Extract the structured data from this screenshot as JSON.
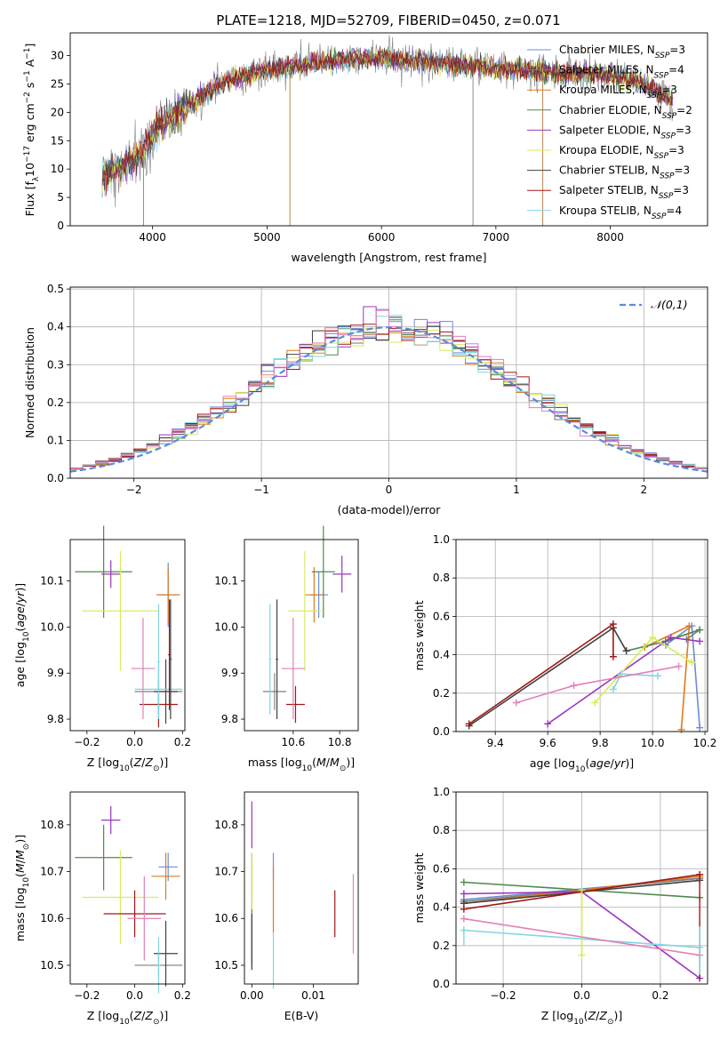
{
  "figure": {
    "title": "PLATE=1218, MJD=52709, FIBERID=0450, z=0.071"
  },
  "series_styles": [
    {
      "name": "Chabrier MILES",
      "nssp": "3",
      "color": "#6b8cd8"
    },
    {
      "name": "Salpeter MILES",
      "nssp": "4",
      "color": "#7f7f7f"
    },
    {
      "name": "Kroupa MILES",
      "nssp": "3",
      "color": "#e07b1a"
    },
    {
      "name": "Chabrier ELODIE",
      "nssp": "2",
      "color": "#4f8a4f"
    },
    {
      "name": "Salpeter ELODIE",
      "nssp": "3",
      "color": "#9b35c0"
    },
    {
      "name": "Kroupa ELODIE",
      "nssp": "3",
      "color": "#d6ec5a"
    },
    {
      "name": "Chabrier STELIB",
      "nssp": "3",
      "color": "#404040"
    },
    {
      "name": "Salpeter STELIB",
      "nssp": "3",
      "color": "#a01818"
    },
    {
      "name": "Kroupa STELIB",
      "nssp": "4",
      "color": "#7fd6e0"
    }
  ],
  "chart_data": [
    {
      "id": "spectrum",
      "type": "line",
      "title": "PLATE=1218, MJD=52709, FIBERID=0450, z=0.071",
      "xlabel": "wavelength [Angstrom, rest frame]",
      "ylabel": "Flux [f_λ10^-17 erg cm^-2 s^-1 A^-1]",
      "xlim": [
        3280,
        8850
      ],
      "ylim": [
        0,
        34
      ],
      "xticks": [
        4000,
        5000,
        6000,
        7000,
        8000
      ],
      "yticks": [
        0,
        5,
        10,
        15,
        20,
        25,
        30
      ],
      "legend": "upper-right",
      "grid": false,
      "continuum": {
        "x": [
          3560,
          3700,
          3850,
          3950,
          4050,
          4200,
          4300,
          4500,
          4700,
          5000,
          5200,
          5500,
          5800,
          6000,
          6300,
          6600,
          6900,
          7200,
          7500,
          8000,
          8300,
          8550
        ],
        "y": [
          9,
          10,
          12,
          14,
          17.5,
          19.5,
          21,
          24,
          26,
          27.5,
          28,
          29,
          29.5,
          29.5,
          29,
          28.5,
          28,
          27.5,
          27,
          26.5,
          25,
          22
        ]
      },
      "spikes": [
        {
          "x": 3920,
          "bottom": 0
        },
        {
          "x": 5200,
          "bottom": 0
        },
        {
          "x": 6800,
          "bottom": 0
        },
        {
          "x": 7410,
          "bottom": 0
        }
      ]
    },
    {
      "id": "residuals",
      "type": "area",
      "xlabel": "(data-model)/error",
      "ylabel": "Normed distribution",
      "xlim": [
        -2.5,
        2.5
      ],
      "ylim": [
        0,
        0.505
      ],
      "xticks": [
        -2,
        -1,
        0,
        1,
        2
      ],
      "yticks": [
        0.0,
        0.1,
        0.2,
        0.3,
        0.4,
        0.5
      ],
      "grid": true,
      "legend": "upper-right",
      "reference_label": "𝒩(0,1)",
      "bin_width": 0.1,
      "bin_start": -2.5
    },
    {
      "id": "age-vs-Z",
      "type": "scatter",
      "xlabel": "Z [log10(Z/Z⊙)]",
      "ylabel": "age  [log10(age/yr)]",
      "xlim": [
        -0.27,
        0.21
      ],
      "ylim": [
        9.775,
        10.19
      ],
      "xticks": [
        -0.2,
        0.0,
        0.2
      ],
      "yticks": [
        9.8,
        9.9,
        10.0,
        10.1
      ],
      "grid": false,
      "points": [
        {
          "series": 0,
          "x": 0.14,
          "y": 10.07,
          "xerr": 0.04,
          "yerr": 0.07
        },
        {
          "series": 1,
          "x": 0.1,
          "y": 9.86,
          "xerr": 0.1,
          "yerr": 0.05
        },
        {
          "series": 2,
          "x": 0.14,
          "y": 10.07,
          "xerr": 0.05,
          "yerr": 0.06
        },
        {
          "series": 3,
          "x": -0.13,
          "y": 10.12,
          "xerr": 0.12,
          "yerr": 0.1
        },
        {
          "series": 4,
          "x": -0.1,
          "y": 10.115,
          "xerr": 0.04,
          "yerr": 0.03
        },
        {
          "series": 5,
          "x": -0.06,
          "y": 10.035,
          "xerr": 0.16,
          "yerr": 0.13
        },
        {
          "series": 6,
          "x": 0.13,
          "y": 9.86,
          "xerr": 0.05,
          "yerr": 0.07
        },
        {
          "series": 7,
          "x": 0.1,
          "y": 9.832,
          "xerr": 0.08,
          "yerr": 0.05
        },
        {
          "series": 8,
          "x": 0.1,
          "y": 9.865,
          "xerr": 0.1,
          "yerr": 0.06
        },
        {
          "series": 6,
          "x": 0.15,
          "y": 9.93,
          "xerr": 0.005,
          "yerr": 0.13
        },
        {
          "series": 7,
          "x": 0.145,
          "y": 9.94,
          "xerr": 0.005,
          "yerr": 0.12
        },
        {
          "series": 8,
          "x": 0.1,
          "y": 9.925,
          "xerr": 0.005,
          "yerr": 0.125
        },
        {
          "series": 9,
          "x": 0.035,
          "y": 9.91,
          "xerr": 0.05,
          "yerr": 0.11
        }
      ]
    },
    {
      "id": "age-vs-mass",
      "type": "scatter",
      "xlabel": "mass [log10(M/M⊙)]",
      "ylabel": "",
      "xlim": [
        10.39,
        10.88
      ],
      "ylim": [
        9.775,
        10.19
      ],
      "xticks": [
        10.6,
        10.8
      ],
      "yticks": [
        9.8,
        9.9,
        10.0,
        10.1
      ],
      "grid": false,
      "points": [
        {
          "series": 0,
          "x": 10.71,
          "y": 10.07,
          "xerr": 0.04,
          "yerr": 0.05
        },
        {
          "series": 1,
          "x": 10.52,
          "y": 9.86,
          "xerr": 0.05,
          "yerr": 0.04
        },
        {
          "series": 2,
          "x": 10.69,
          "y": 10.07,
          "xerr": 0.04,
          "yerr": 0.06
        },
        {
          "series": 3,
          "x": 10.73,
          "y": 10.12,
          "xerr": 0.05,
          "yerr": 0.1
        },
        {
          "series": 4,
          "x": 10.81,
          "y": 10.115,
          "xerr": 0.04,
          "yerr": 0.04
        },
        {
          "series": 5,
          "x": 10.65,
          "y": 10.035,
          "xerr": 0.07,
          "yerr": 0.13
        },
        {
          "series": 6,
          "x": 10.53,
          "y": 9.93,
          "xerr": 0.005,
          "yerr": 0.13
        },
        {
          "series": 7,
          "x": 10.61,
          "y": 9.832,
          "xerr": 0.04,
          "yerr": 0.04
        },
        {
          "series": 8,
          "x": 10.5,
          "y": 9.93,
          "xerr": 0.005,
          "yerr": 0.12
        },
        {
          "series": 9,
          "x": 10.6,
          "y": 9.91,
          "xerr": 0.05,
          "yerr": 0.11
        }
      ]
    },
    {
      "id": "massweight-vs-age",
      "type": "line",
      "xlabel": "age  [log10(age/yr)]",
      "ylabel": "mass weight",
      "xlim": [
        9.25,
        10.21
      ],
      "ylim": [
        0,
        1
      ],
      "xticks": [
        9.4,
        9.6,
        9.8,
        10.0,
        10.2
      ],
      "yticks": [
        0.0,
        0.2,
        0.4,
        0.6,
        0.8,
        1.0
      ],
      "grid": true,
      "series": [
        {
          "series": 0,
          "x": [
            10.18,
            10.15,
            10.05
          ],
          "y": [
            0.02,
            0.55,
            0.45
          ]
        },
        {
          "series": 1,
          "x": [
            10.13,
            10.18,
            10.05
          ],
          "y": [
            0.48,
            0.53,
            0.47
          ]
        },
        {
          "series": 2,
          "x": [
            10.11,
            10.14,
            9.97
          ],
          "y": [
            0.01,
            0.55,
            0.44
          ]
        },
        {
          "series": 3,
          "x": [
            10.18,
            10.05,
            9.9
          ],
          "y": [
            0.53,
            0.47,
            0.42
          ]
        },
        {
          "series": 4,
          "x": [
            9.6,
            10.07,
            10.18
          ],
          "y": [
            0.04,
            0.49,
            0.47
          ]
        },
        {
          "series": 5,
          "x": [
            9.78,
            10.0,
            10.15
          ],
          "y": [
            0.15,
            0.49,
            0.36
          ]
        },
        {
          "series": 6,
          "x": [
            9.3,
            9.85,
            9.9
          ],
          "y": [
            0.03,
            0.54,
            0.42
          ]
        },
        {
          "series": 7,
          "x": [
            9.3,
            9.85,
            9.85
          ],
          "y": [
            0.04,
            0.56,
            0.39
          ]
        },
        {
          "series": 8,
          "x": [
            9.85,
            9.88,
            10.02
          ],
          "y": [
            0.22,
            0.3,
            0.29
          ]
        },
        {
          "series": 9,
          "x": [
            9.48,
            9.7,
            10.1
          ],
          "y": [
            0.15,
            0.24,
            0.34
          ]
        }
      ]
    },
    {
      "id": "mass-vs-Z",
      "type": "scatter",
      "xlabel": "Z [log10(Z/Z⊙)]",
      "ylabel": "mass [log10(M/M⊙)]",
      "xlim": [
        -0.27,
        0.21
      ],
      "ylim": [
        10.46,
        10.87
      ],
      "xticks": [
        -0.2,
        0.0,
        0.2
      ],
      "yticks": [
        10.5,
        10.6,
        10.7,
        10.8
      ],
      "grid": false,
      "points": [
        {
          "series": 0,
          "x": 0.14,
          "y": 10.71,
          "xerr": 0.04,
          "yerr": 0.03
        },
        {
          "series": 1,
          "x": 0.1,
          "y": 10.5,
          "xerr": 0.1,
          "yerr": 0.03
        },
        {
          "series": 2,
          "x": 0.13,
          "y": 10.69,
          "xerr": 0.06,
          "yerr": 0.05
        },
        {
          "series": 3,
          "x": -0.13,
          "y": 10.73,
          "xerr": 0.12,
          "yerr": 0.07
        },
        {
          "series": 4,
          "x": -0.1,
          "y": 10.81,
          "xerr": 0.04,
          "yerr": 0.03
        },
        {
          "series": 5,
          "x": -0.06,
          "y": 10.645,
          "xerr": 0.16,
          "yerr": 0.1
        },
        {
          "series": 6,
          "x": 0.13,
          "y": 10.525,
          "xerr": 0.05,
          "yerr": 0.07
        },
        {
          "series": 7,
          "x": 0.0,
          "y": 10.61,
          "xerr": 0.13,
          "yerr": 0.05
        },
        {
          "series": 8,
          "x": 0.1,
          "y": 10.5,
          "xerr": 0.005,
          "yerr": 0.06
        },
        {
          "series": 9,
          "x": 0.04,
          "y": 10.6,
          "xerr": 0.07,
          "yerr": 0.09
        }
      ]
    },
    {
      "id": "mass-vs-EBV",
      "type": "scatter",
      "xlabel": "E(B-V)",
      "ylabel": "",
      "xlim": [
        -0.0012,
        0.0173
      ],
      "ylim": [
        10.46,
        10.87
      ],
      "xticks": [
        0.0,
        0.01
      ],
      "yticks": [
        10.5,
        10.6,
        10.7,
        10.8
      ],
      "grid": false,
      "points": [
        {
          "series": 0,
          "x": 0.0035,
          "y": 10.71,
          "xerr": 0,
          "yerr": 0.03
        },
        {
          "series": 1,
          "x": 0.0,
          "y": 10.55,
          "xerr": 0,
          "yerr": 0.05
        },
        {
          "series": 2,
          "x": 0.0035,
          "y": 10.64,
          "xerr": 0,
          "yerr": 0.07
        },
        {
          "series": 3,
          "x": 0.0,
          "y": 10.67,
          "xerr": 0,
          "yerr": 0.07
        },
        {
          "series": 4,
          "x": 0.0,
          "y": 10.8,
          "xerr": 0,
          "yerr": 0.05
        },
        {
          "series": 5,
          "x": 0.0,
          "y": 10.68,
          "xerr": 0,
          "yerr": 0.06
        },
        {
          "series": 6,
          "x": 0.0,
          "y": 10.55,
          "xerr": 0,
          "yerr": 0.06
        },
        {
          "series": 7,
          "x": 0.0135,
          "y": 10.61,
          "xerr": 0,
          "yerr": 0.05
        },
        {
          "series": 8,
          "x": 0.0035,
          "y": 10.51,
          "xerr": 0,
          "yerr": 0.06
        },
        {
          "series": 9,
          "x": 0.0165,
          "y": 10.61,
          "xerr": 0,
          "yerr": 0.085
        }
      ]
    },
    {
      "id": "massweight-vs-Z",
      "type": "line",
      "xlabel": "Z [log10(Z/Z⊙)]",
      "ylabel": "mass weight",
      "xlim": [
        -0.32,
        0.32
      ],
      "ylim": [
        0,
        1
      ],
      "xticks": [
        -0.2,
        0.0,
        0.2
      ],
      "yticks": [
        0.0,
        0.2,
        0.4,
        0.6,
        0.8,
        1.0
      ],
      "grid": true,
      "series": [
        {
          "series": 0,
          "x": [
            -0.3,
            0.3
          ],
          "y": [
            0.44,
            0.55
          ]
        },
        {
          "series": 1,
          "x": [
            -0.3,
            0.3
          ],
          "y": [
            0.43,
            0.55
          ]
        },
        {
          "series": 2,
          "x": [
            -0.3,
            0.3
          ],
          "y": [
            0.42,
            0.56
          ]
        },
        {
          "series": 3,
          "x": [
            -0.3,
            0.3
          ],
          "y": [
            0.53,
            0.45
          ]
        },
        {
          "series": 4,
          "x": [
            -0.3,
            0.0,
            0.3
          ],
          "y": [
            0.47,
            0.48,
            0.03
          ]
        },
        {
          "series": 5,
          "x": [
            0.0,
            0.0
          ],
          "y": [
            0.15,
            0.49
          ]
        },
        {
          "series": 6,
          "x": [
            -0.3,
            0.3
          ],
          "y": [
            0.42,
            0.54
          ]
        },
        {
          "series": 7,
          "x": [
            -0.3,
            0.3
          ],
          "y": [
            0.39,
            0.57
          ]
        },
        {
          "series": 8,
          "x": [
            -0.3,
            0.3
          ],
          "y": [
            0.28,
            0.19
          ]
        },
        {
          "series": 9,
          "x": [
            -0.3,
            0.3
          ],
          "y": [
            0.34,
            0.15
          ]
        }
      ],
      "vertical_markers": [
        {
          "series": 7,
          "x": 0.3,
          "y0": 0.02,
          "y1": 0.57
        },
        {
          "series": 8,
          "x": 0.3,
          "y0": 0.05,
          "y1": 0.3
        },
        {
          "series": 8,
          "x": -0.3,
          "y0": 0.2,
          "y1": 0.3
        },
        {
          "series": 5,
          "x": 0.0,
          "y0": 0.15,
          "y1": 0.49
        }
      ]
    }
  ]
}
